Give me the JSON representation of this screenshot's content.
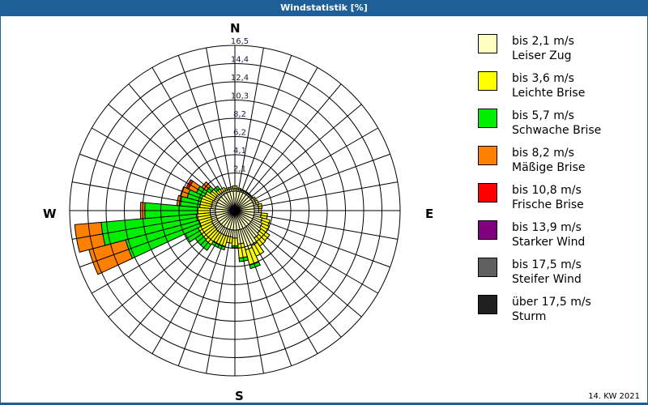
{
  "window": {
    "title": "Windstatistik [%]"
  },
  "compass": {
    "north": "N",
    "east": "E",
    "south": "S",
    "west": "W"
  },
  "footer": {
    "period": "14. KW 2021"
  },
  "legend": [
    {
      "speed": "bis 2,1 m/s",
      "name": "Leiser Zug",
      "color": "#ffffc0"
    },
    {
      "speed": "bis 3,6 m/s",
      "name": "Leichte Brise",
      "color": "#ffff00"
    },
    {
      "speed": "bis 5,7 m/s",
      "name": "Schwache Brise",
      "color": "#00ee00"
    },
    {
      "speed": "bis 8,2 m/s",
      "name": "Mäßige Brise",
      "color": "#ff8000"
    },
    {
      "speed": "bis 10,8 m/s",
      "name": "Frische Brise",
      "color": "#ff0000"
    },
    {
      "speed": "bis 13,9 m/s",
      "name": "Starker Wind",
      "color": "#800080"
    },
    {
      "speed": "bis 17,5 m/s",
      "name": "Steifer Wind",
      "color": "#606060"
    },
    {
      "speed": "über 17,5 m/s",
      "name": "Sturm",
      "color": "#202020"
    }
  ],
  "chart_data": {
    "type": "wind-rose",
    "title": "Windstatistik [%]",
    "subtitle": "14. KW 2021",
    "radial_ticks": [
      "2,1",
      "4,1",
      "6,2",
      "8,2",
      "10,3",
      "12,4",
      "14,4",
      "16,5"
    ],
    "radial_range": [
      0,
      16.5
    ],
    "sector_width_deg": 10,
    "series_names": [
      "bis 2,1 m/s",
      "bis 3,6 m/s",
      "bis 5,7 m/s",
      "bis 8,2 m/s",
      "bis 10,8 m/s",
      "bis 13,9 m/s",
      "bis 17,5 m/s",
      "über 17,5 m/s"
    ],
    "series_colors": [
      "#ffffc0",
      "#ffff00",
      "#00ee00",
      "#ff8000",
      "#ff0000",
      "#800080",
      "#606060",
      "#202020"
    ],
    "note": "cumulative % per direction sector (estimated from image); direction = sector centre in degrees",
    "sectors": [
      {
        "dir": 0,
        "cum": [
          0.3,
          0.6
        ]
      },
      {
        "dir": 10,
        "cum": [
          0.2,
          0.4
        ]
      },
      {
        "dir": 20,
        "cum": [
          0.2,
          0.3
        ]
      },
      {
        "dir": 30,
        "cum": [
          0.2,
          0.3
        ]
      },
      {
        "dir": 40,
        "cum": [
          0.2,
          0.3
        ]
      },
      {
        "dir": 50,
        "cum": [
          0.2,
          0.3
        ]
      },
      {
        "dir": 60,
        "cum": [
          0.3,
          0.5
        ]
      },
      {
        "dir": 70,
        "cum": [
          0.3,
          0.6
        ]
      },
      {
        "dir": 80,
        "cum": [
          0.5,
          0.9
        ]
      },
      {
        "dir": 90,
        "cum": [
          0.5,
          0.8
        ]
      },
      {
        "dir": 100,
        "cum": [
          0.8,
          1.5
        ]
      },
      {
        "dir": 110,
        "cum": [
          1.0,
          1.9
        ]
      },
      {
        "dir": 120,
        "cum": [
          1.2,
          2.1
        ]
      },
      {
        "dir": 130,
        "cum": [
          1.4,
          2.6
        ]
      },
      {
        "dir": 140,
        "cum": [
          1.6,
          2.7
        ]
      },
      {
        "dir": 150,
        "cum": [
          2.2,
          3.5
        ]
      },
      {
        "dir": 160,
        "cum": [
          2.4,
          4.2,
          4.6
        ]
      },
      {
        "dir": 170,
        "cum": [
          1.6,
          3.2,
          3.6
        ]
      },
      {
        "dir": 180,
        "cum": [
          0.9,
          1.8,
          2.0
        ]
      },
      {
        "dir": 190,
        "cum": [
          0.8,
          1.5
        ]
      },
      {
        "dir": 200,
        "cum": [
          0.8,
          2.0,
          2.4
        ]
      },
      {
        "dir": 210,
        "cum": [
          0.8,
          2.0,
          2.4
        ]
      },
      {
        "dir": 220,
        "cum": [
          0.8,
          2.5,
          3.3
        ]
      },
      {
        "dir": 230,
        "cum": [
          0.7,
          2.4,
          3.3
        ]
      },
      {
        "dir": 240,
        "cum": [
          0.7,
          2.4,
          4.0
        ]
      },
      {
        "dir": 250,
        "cum": [
          0.6,
          2.0,
          10.6,
          14.9
        ]
      },
      {
        "dir": 260,
        "cum": [
          0.6,
          2.2,
          13.0,
          16.0
        ]
      },
      {
        "dir": 270,
        "cum": [
          0.6,
          2.0,
          8.0,
          8.5
        ]
      },
      {
        "dir": 280,
        "cum": [
          0.5,
          1.8,
          4.0,
          4.4
        ]
      },
      {
        "dir": 290,
        "cum": [
          0.5,
          1.8,
          3.4,
          4.2
        ]
      },
      {
        "dir": 300,
        "cum": [
          0.4,
          1.6,
          2.6,
          3.6,
          3.9
        ]
      },
      {
        "dir": 310,
        "cum": [
          0.4,
          1.2,
          1.7,
          2.4
        ]
      },
      {
        "dir": 320,
        "cum": [
          0.3,
          0.8,
          1.2
        ]
      },
      {
        "dir": 330,
        "cum": [
          0.3,
          0.7
        ]
      },
      {
        "dir": 340,
        "cum": [
          0.3,
          0.5
        ]
      },
      {
        "dir": 350,
        "cum": [
          0.3,
          0.5
        ]
      }
    ]
  }
}
